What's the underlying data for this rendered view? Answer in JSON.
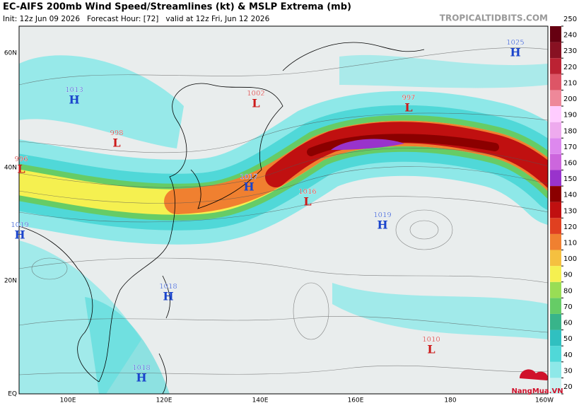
{
  "header": {
    "title": "EC-AIFS 200mb Wind Speed/Streamlines (kt) & MSLP Extrema (mb)",
    "subtitle": "Init: 12z Jun 09 2026   Forecast Hour: [72]   valid at 12z Fri, Jun 12 2026",
    "site": "TROPICALTIDBITS.COM"
  },
  "map": {
    "lat_labels": [
      "60N",
      "40N",
      "20N",
      "EQ"
    ],
    "lon_labels": [
      "100E",
      "120E",
      "140E",
      "160E",
      "180",
      "160W"
    ],
    "extrema": [
      {
        "type": "H",
        "value": 1013
      },
      {
        "type": "L",
        "value": 998
      },
      {
        "type": "L",
        "value": 996
      },
      {
        "type": "L",
        "value": 1002
      },
      {
        "type": "H",
        "value": 1017
      },
      {
        "type": "L",
        "value": 1016
      },
      {
        "type": "H",
        "value": 1019
      },
      {
        "type": "H",
        "value": 1019
      },
      {
        "type": "L",
        "value": 997
      },
      {
        "type": "H",
        "value": 1025
      },
      {
        "type": "H",
        "value": 1018
      },
      {
        "type": "H",
        "value": 1018
      },
      {
        "type": "L",
        "value": 1010
      }
    ]
  },
  "colorbar": {
    "ticks": [
      20,
      30,
      40,
      50,
      60,
      70,
      80,
      90,
      100,
      110,
      120,
      130,
      140,
      150,
      160,
      170,
      180,
      190,
      200,
      210,
      220,
      230,
      240,
      250
    ],
    "colors": [
      "#c8f0f0",
      "#8ee8e8",
      "#50d8d8",
      "#30c0c0",
      "#38b48a",
      "#66cc66",
      "#99dd55",
      "#f5f050",
      "#f5c040",
      "#f08030",
      "#e04020",
      "#c01010",
      "#8b0000",
      "#9933cc",
      "#cc66dd",
      "#dd88ee",
      "#eeaaee",
      "#ffccff",
      "#ee8899",
      "#dd5566",
      "#bb2233",
      "#881122",
      "#660011"
    ]
  },
  "logo": {
    "text": "NangMua.VN"
  }
}
